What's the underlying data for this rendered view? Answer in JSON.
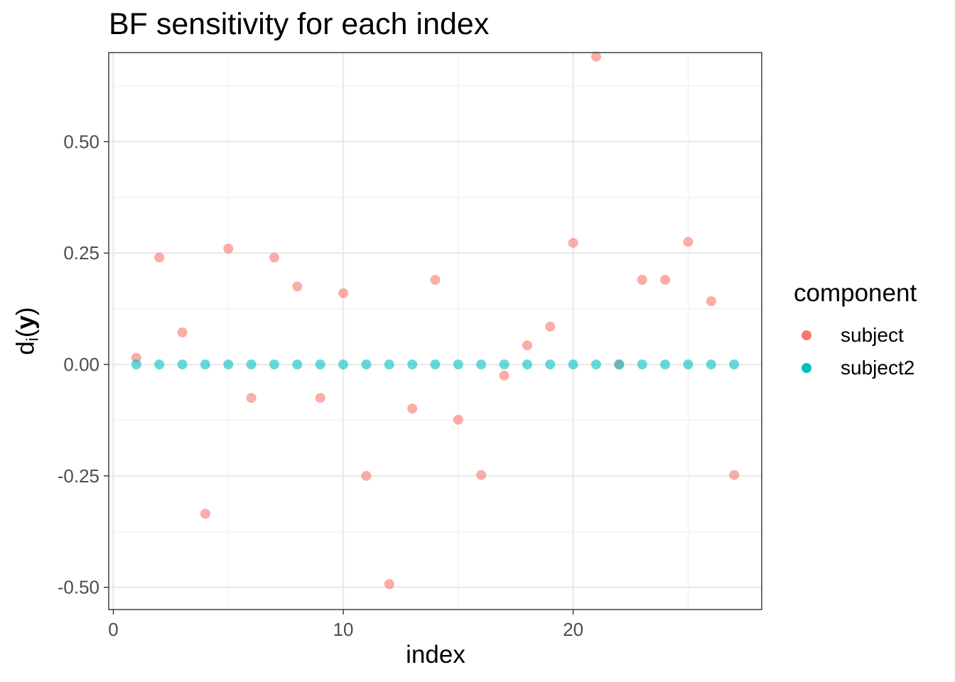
{
  "chart_data": {
    "type": "scatter",
    "title": "BF sensitivity for each index",
    "xlabel": "index",
    "ylabel": {
      "main": "d",
      "sub": "i",
      "open": "(",
      "var": "y",
      "close": ")"
    },
    "xlim": [
      -0.2,
      28.2
    ],
    "ylim": [
      -0.55,
      0.7
    ],
    "xticks": [
      0,
      10,
      20
    ],
    "xtick_labels": [
      "0",
      "10",
      "20"
    ],
    "yticks": [
      0.5,
      0.25,
      0,
      -0.25,
      -0.5
    ],
    "ytick_labels": [
      "0.50",
      "0.25",
      "0.00",
      "-0.25",
      "-0.50"
    ],
    "grid": true,
    "legend_title": "component",
    "legend_position": "right",
    "series": [
      {
        "name": "subject",
        "color": "#F8766D",
        "x": [
          1,
          2,
          3,
          4,
          5,
          6,
          7,
          8,
          9,
          10,
          11,
          12,
          13,
          14,
          15,
          16,
          17,
          18,
          19,
          20,
          21,
          22,
          23,
          24,
          25,
          26,
          27
        ],
        "y": [
          0.015,
          0.24,
          0.072,
          -0.335,
          0.26,
          -0.075,
          0.24,
          0.175,
          -0.075,
          0.16,
          -0.25,
          -0.493,
          -0.099,
          0.19,
          -0.124,
          -0.248,
          -0.025,
          0.043,
          0.085,
          0.273,
          0.691,
          0.0,
          0.19,
          0.19,
          0.275,
          0.142,
          -0.248
        ]
      },
      {
        "name": "subject2",
        "color": "#00BFC4",
        "x": [
          1,
          2,
          3,
          4,
          5,
          6,
          7,
          8,
          9,
          10,
          11,
          12,
          13,
          14,
          15,
          16,
          17,
          18,
          19,
          20,
          21,
          22,
          23,
          24,
          25,
          26,
          27
        ],
        "y": [
          0,
          0,
          0,
          0,
          0,
          0,
          0,
          0,
          0,
          0,
          0,
          0,
          0,
          0,
          0,
          0,
          0,
          0,
          0,
          0,
          0,
          0,
          0,
          0,
          0,
          0,
          0
        ]
      }
    ]
  }
}
